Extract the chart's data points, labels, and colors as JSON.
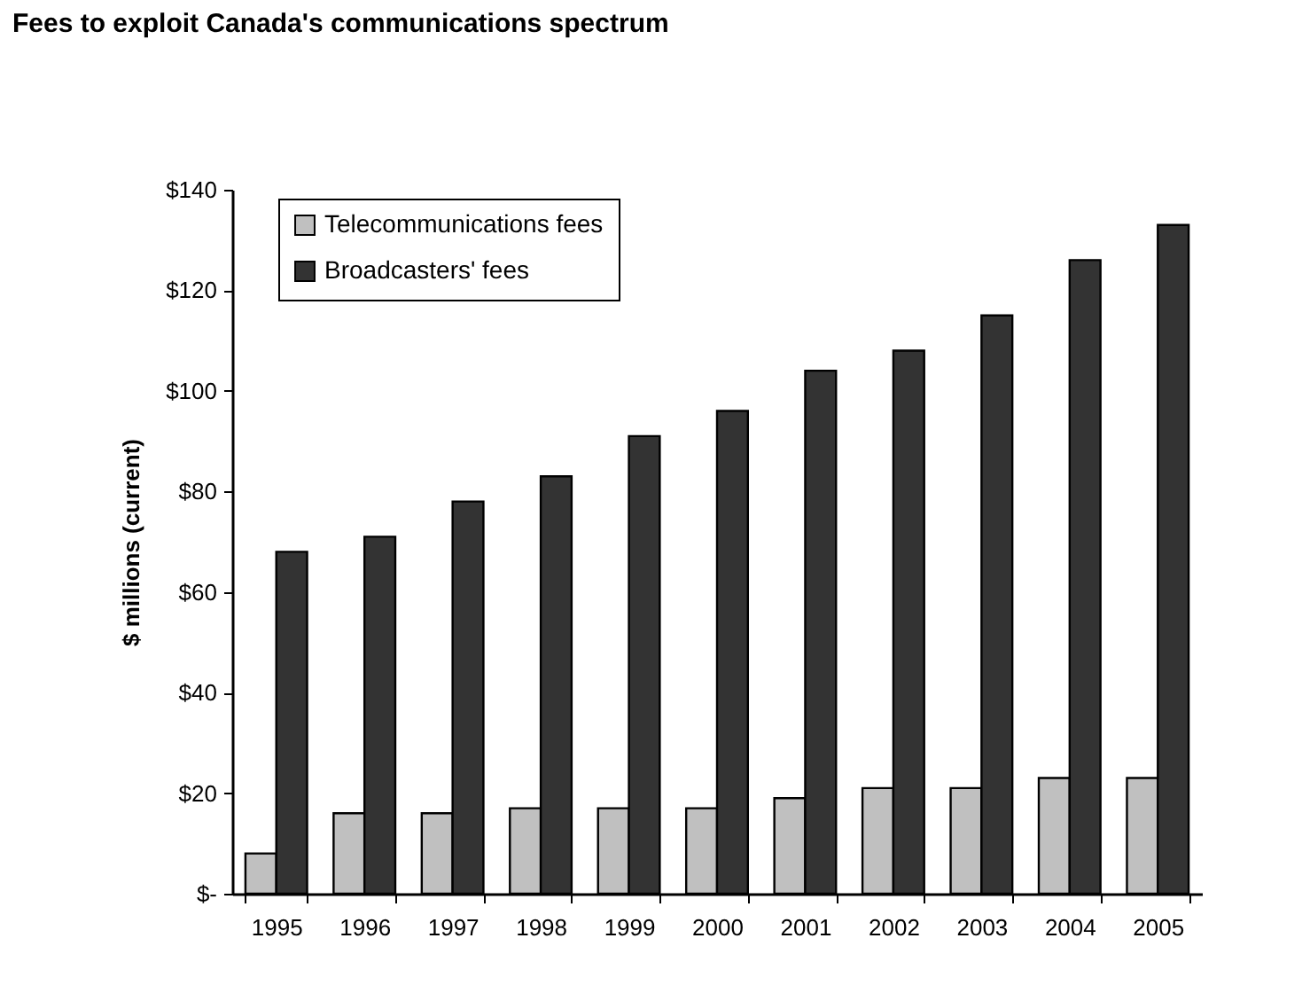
{
  "chart_data": {
    "type": "bar",
    "title": "Fees to exploit Canada's communications spectrum",
    "ylabel": "$ millions (current)",
    "categories": [
      "1995",
      "1996",
      "1997",
      "1998",
      "1999",
      "2000",
      "2001",
      "2002",
      "2003",
      "2004",
      "2005"
    ],
    "series": [
      {
        "name": "Telecommunications fees",
        "color": "#c0c0c0",
        "values": [
          8,
          16,
          16,
          17,
          17,
          17,
          19,
          21,
          21,
          23,
          23
        ]
      },
      {
        "name": "Broadcasters' fees",
        "color": "#333333",
        "values": [
          68,
          71,
          78,
          83,
          91,
          96,
          104,
          108,
          115,
          126,
          133
        ]
      }
    ],
    "ylim": [
      0,
      140
    ],
    "yticks": [
      {
        "value": 0,
        "label": "$-"
      },
      {
        "value": 20,
        "label": "$20"
      },
      {
        "value": 40,
        "label": "$40"
      },
      {
        "value": 60,
        "label": "$60"
      },
      {
        "value": 80,
        "label": "$80"
      },
      {
        "value": 100,
        "label": "$100"
      },
      {
        "value": 120,
        "label": "$120"
      },
      {
        "value": 140,
        "label": "$140"
      }
    ],
    "grid": false,
    "legend": "top left"
  }
}
